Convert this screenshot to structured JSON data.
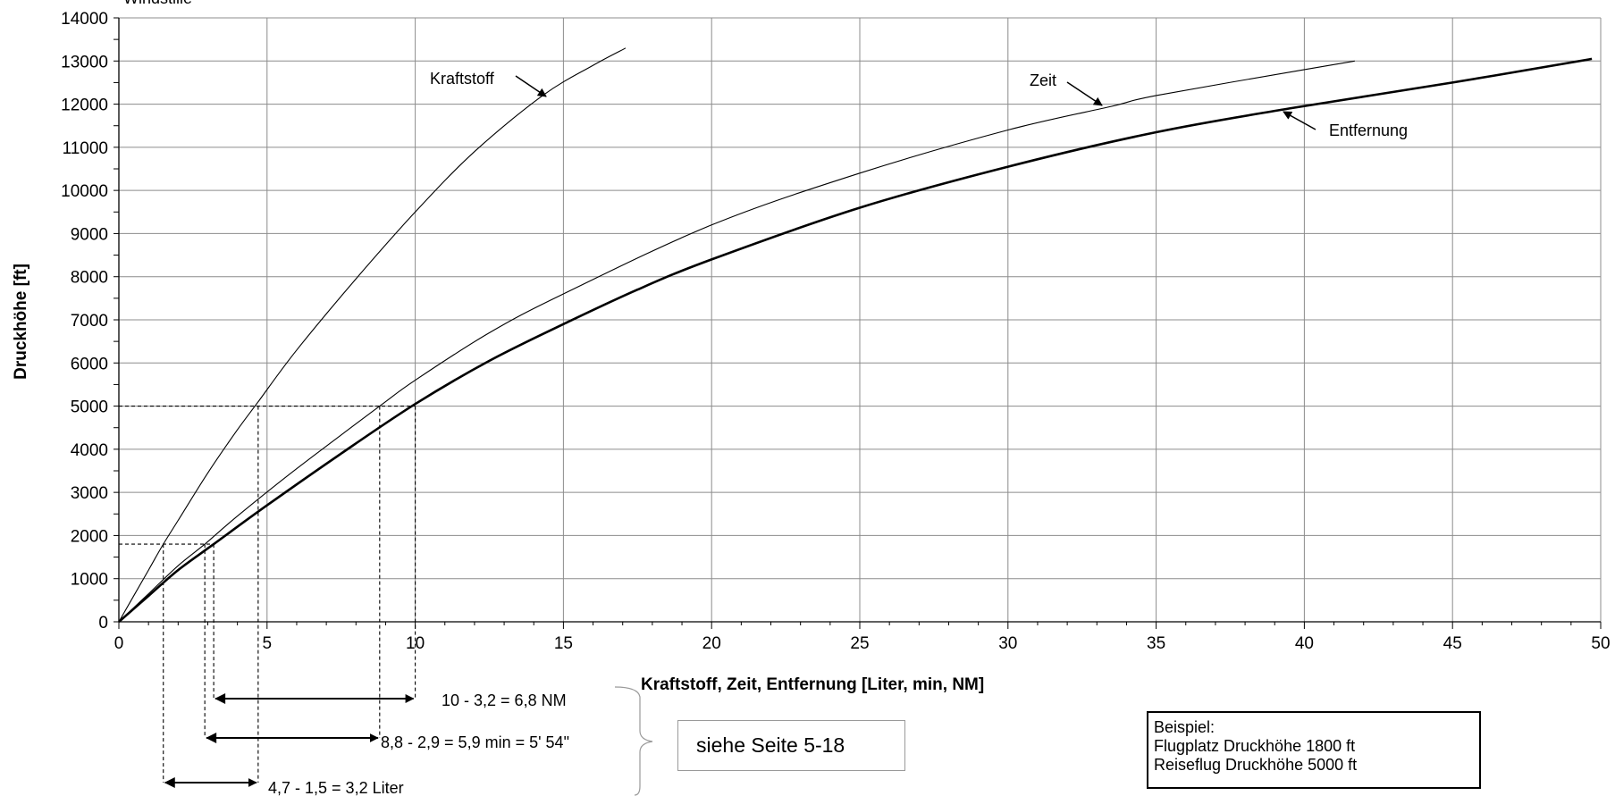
{
  "chart_data": {
    "type": "line",
    "title": "",
    "partial_top_text": "Windstille",
    "xlabel": "Kraftstoff, Zeit, Entfernung  [Liter, min, NM]",
    "ylabel": "Druckhöhe [ft]",
    "xlim": [
      0,
      50
    ],
    "ylim": [
      0,
      14000
    ],
    "x_ticks": [
      0,
      5,
      10,
      15,
      20,
      25,
      30,
      35,
      40,
      45,
      50
    ],
    "y_ticks": [
      0,
      1000,
      2000,
      3000,
      4000,
      5000,
      6000,
      7000,
      8000,
      9000,
      10000,
      11000,
      12000,
      13000,
      14000
    ],
    "x_tick_labels": [
      "0",
      "5",
      "10",
      "15",
      "20",
      "25",
      "30",
      "35",
      "40",
      "45",
      "50"
    ],
    "y_tick_labels": [
      "0",
      "1000",
      "2000",
      "3000",
      "4000",
      "5000",
      "6000",
      "7000",
      "8000",
      "9000",
      "10000",
      "11000",
      "12000",
      "13000",
      "14000"
    ],
    "grid": true,
    "series": [
      {
        "name": "Kraftstoff",
        "line_width": "thin",
        "x": [
          0,
          1,
          1.5,
          2,
          3,
          4,
          4.7,
          6,
          8,
          10,
          12,
          14.3,
          16,
          17.1
        ],
        "y": [
          0,
          1200,
          1800,
          2350,
          3450,
          4450,
          5100,
          6300,
          7950,
          9500,
          10900,
          12200,
          12900,
          13300
        ]
      },
      {
        "name": "Zeit",
        "line_width": "thin",
        "x": [
          0,
          1,
          2,
          2.9,
          4,
          6,
          8.8,
          10,
          12.5,
          15,
          20,
          25,
          30,
          33.5,
          35,
          40,
          41.7
        ],
        "y": [
          0,
          650,
          1300,
          1800,
          2450,
          3550,
          5000,
          5600,
          6700,
          7600,
          9200,
          10400,
          11400,
          11950,
          12200,
          12800,
          13000
        ]
      },
      {
        "name": "Entfernung",
        "line_width": "thick",
        "x": [
          0,
          1,
          2,
          3.2,
          5,
          7.5,
          10,
          12.5,
          15,
          17.5,
          20,
          25,
          30,
          35,
          39.5,
          45,
          49.7
        ],
        "y": [
          0,
          600,
          1200,
          1800,
          2700,
          3900,
          5050,
          6050,
          6900,
          7700,
          8400,
          9600,
          10550,
          11350,
          11900,
          12500,
          13050
        ]
      }
    ],
    "annotations": {
      "kraftstoff_label": "Kraftstoff",
      "zeit_label": "Zeit",
      "entfernung_label": "Entfernung",
      "ablesung_entfernung": "10 - 3,2 = 6,8 NM",
      "ablesung_zeit": "8,8 - 2,9 = 5,9 min = 5' 54\"",
      "ablesung_kraftstoff": "4,7 - 1,5 = 3,2 Liter",
      "ref_text": "siehe Seite 5-18"
    },
    "example_box": {
      "line1": "Beispiel:",
      "line2": "Flugplatz Druckhöhe 1800 ft",
      "line3": "Reiseflug Druckhöhe 5000 ft"
    },
    "readings": {
      "airfield_altitude": 1800,
      "cruise_altitude": 5000,
      "fuel": [
        1.5,
        4.7
      ],
      "time": [
        2.9,
        8.8
      ],
      "distance": [
        3.2,
        10
      ]
    }
  }
}
